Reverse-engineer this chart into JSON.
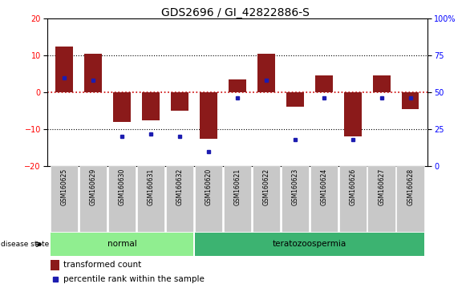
{
  "title": "GDS2696 / GI_42822886-S",
  "samples": [
    "GSM160625",
    "GSM160629",
    "GSM160630",
    "GSM160631",
    "GSM160632",
    "GSM160620",
    "GSM160621",
    "GSM160622",
    "GSM160623",
    "GSM160624",
    "GSM160626",
    "GSM160627",
    "GSM160628"
  ],
  "transformed_count": [
    12.5,
    10.5,
    -8.0,
    -7.5,
    -5.0,
    -12.5,
    3.5,
    10.5,
    -4.0,
    4.5,
    -12.0,
    4.5,
    -4.5
  ],
  "percentile_rank": [
    60,
    58,
    20,
    22,
    20,
    10,
    46,
    58,
    18,
    46,
    18,
    46,
    46
  ],
  "disease_groups": [
    {
      "label": "normal",
      "start": 0,
      "end": 5,
      "color": "#90EE90"
    },
    {
      "label": "teratozoospermia",
      "start": 5,
      "end": 13,
      "color": "#3CB371"
    }
  ],
  "ylim_left": [
    -20,
    20
  ],
  "ylim_right": [
    0,
    100
  ],
  "yticks_left": [
    -20,
    -10,
    0,
    10,
    20
  ],
  "yticks_right": [
    0,
    25,
    50,
    75,
    100
  ],
  "bar_color": "#8B1A1A",
  "dot_color": "#1C1CB0",
  "zero_line_color": "#CC0000",
  "grid_color": "#000000",
  "title_fontsize": 10,
  "tick_fontsize": 7,
  "bg_color": "#FFFFFF",
  "plot_bg_color": "#FFFFFF"
}
